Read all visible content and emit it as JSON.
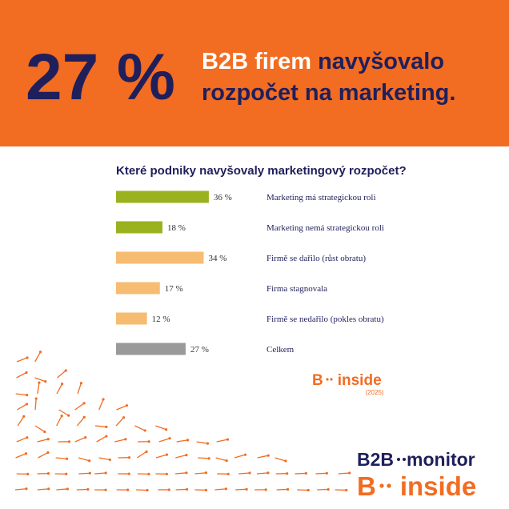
{
  "headline": {
    "figure": "27 %",
    "white": "B2B firem",
    "navy": "navyšovalo",
    "line2": "rozpočet na marketing."
  },
  "chart_data": {
    "type": "bar",
    "orientation": "horizontal",
    "title": "Které podniky navyšovaly marketingový rozpočet?",
    "categories": [
      "Marketing má strategickou roli",
      "Marketing nemá strategickou roli",
      "Firmě se dařilo (růst obratu)",
      "Firma stagnovala",
      "Firmě se nedařilo (pokles obratu)",
      "Celkem"
    ],
    "values": [
      36,
      18,
      34,
      17,
      12,
      27
    ],
    "value_labels": [
      "36 %",
      "18 %",
      "34 %",
      "17 %",
      "12 %",
      "27 %"
    ],
    "colors": [
      "#9bb21f",
      "#9bb21f",
      "#f5bc72",
      "#f5bc72",
      "#f5bc72",
      "#9a9a9a"
    ]
  },
  "logos": {
    "small_b": "B",
    "small_inside": "inside",
    "small_year": "(2025)",
    "b2b": "B2B",
    "monitor": "monitor",
    "big_b": "B",
    "big_inside": "inside"
  }
}
